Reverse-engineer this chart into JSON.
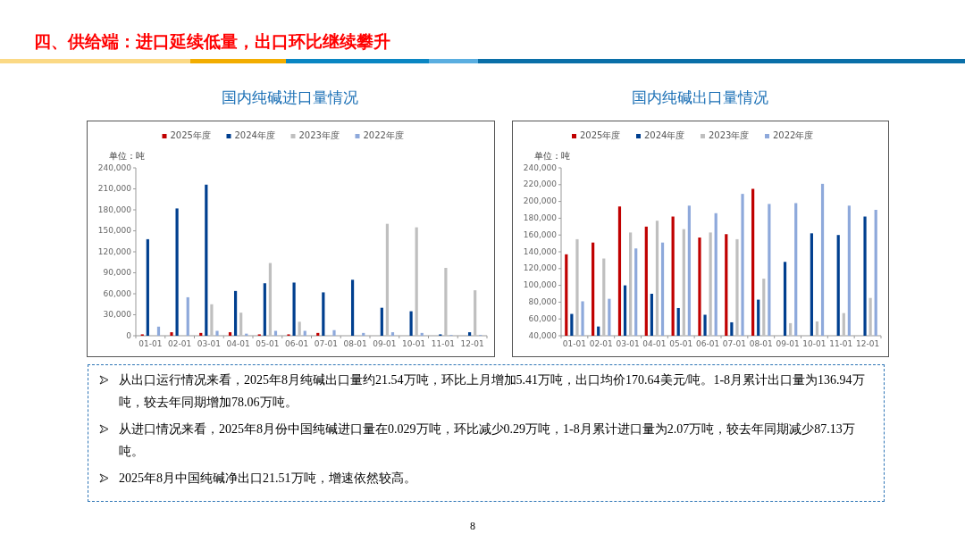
{
  "chart_data": [
    {
      "type": "bar",
      "title": "国内纯碱进口量情况",
      "ylabel": "单位：吨",
      "legend": "top",
      "grid": false,
      "annotations": [
        "四、供给端：进口延续低量，出口环比继续攀升",
        "8"
      ],
      "categories": [
        "01-01",
        "02-01",
        "03-01",
        "04-01",
        "05-01",
        "06-01",
        "07-01",
        "08-01",
        "09-01",
        "10-01",
        "11-01",
        "12-01"
      ],
      "ylim": [
        0,
        240000
      ],
      "yticks": [
        {
          "value": 0,
          "label": "0"
        },
        {
          "value": 30000,
          "label": "30,000"
        },
        {
          "value": 60000,
          "label": "60,000"
        },
        {
          "value": 90000,
          "label": "90,000"
        },
        {
          "value": 120000,
          "label": "120,000"
        },
        {
          "value": 150000,
          "label": "150,000"
        },
        {
          "value": 180000,
          "label": "180,000"
        },
        {
          "value": 210000,
          "label": "210,000"
        },
        {
          "value": 240000,
          "label": "240,000"
        }
      ],
      "series": [
        {
          "name": "2025年度",
          "color": "#c00000",
          "values": [
            2000,
            5000,
            4000,
            5000,
            2000,
            2000,
            4000,
            0,
            null,
            null,
            null,
            null
          ]
        },
        {
          "name": "2024年度",
          "color": "#003f8f",
          "values": [
            138000,
            182000,
            216000,
            64000,
            75000,
            76000,
            62000,
            80000,
            40000,
            35000,
            2000,
            5000
          ]
        },
        {
          "name": "2023年度",
          "color": "#bfbfbf",
          "values": [
            null,
            0,
            45000,
            33000,
            104000,
            20000,
            null,
            0,
            160000,
            155000,
            97000,
            65000
          ]
        },
        {
          "name": "2022年度",
          "color": "#8ea9db",
          "values": [
            13000,
            55000,
            7000,
            3000,
            7000,
            7000,
            8000,
            4000,
            5000,
            4000,
            1000,
            1000
          ]
        }
      ]
    },
    {
      "type": "bar",
      "title": "国内纯碱出口量情况",
      "ylabel": "单位：吨",
      "legend": "top",
      "grid": false,
      "annotations": [
        "从出口运行情况来看，2025年8月纯碱出口量约21.54万吨，环比上月增加5.41万吨，出口均价170.64美元/吨。1-8月累计出口量为136.94万吨，较去年同期增加78.06万吨。",
        "从进口情况来看，2025年8月份中国纯碱进口量在0.029万吨，环比减少0.29万吨，1-8月累计进口量为2.07万吨，较去年同期减少87.13万吨。",
        "2025年8月中国纯碱净出口21.51万吨，增速依然较高。"
      ],
      "categories": [
        "01-01",
        "02-01",
        "03-01",
        "04-01",
        "05-01",
        "06-01",
        "07-01",
        "08-01",
        "09-01",
        "10-01",
        "11-01",
        "12-01"
      ],
      "ylim": [
        40000,
        240000
      ],
      "yticks": [
        {
          "value": 40000,
          "label": "40,000"
        },
        {
          "value": 60000,
          "label": "60,000"
        },
        {
          "value": 80000,
          "label": "80,000"
        },
        {
          "value": 100000,
          "label": "100,000"
        },
        {
          "value": 120000,
          "label": "120,000"
        },
        {
          "value": 140000,
          "label": "140,000"
        },
        {
          "value": 160000,
          "label": "160,000"
        },
        {
          "value": 180000,
          "label": "180,000"
        },
        {
          "value": 200000,
          "label": "200,000"
        },
        {
          "value": 220000,
          "label": "220,000"
        },
        {
          "value": 240000,
          "label": "240,000"
        }
      ],
      "series": [
        {
          "name": "2025年度",
          "color": "#c00000",
          "values": [
            137000,
            151000,
            194000,
            170000,
            182000,
            157000,
            161000,
            215000,
            null,
            null,
            null,
            null
          ]
        },
        {
          "name": "2024年度",
          "color": "#003f8f",
          "values": [
            66000,
            51000,
            100000,
            90000,
            73000,
            65000,
            56000,
            83000,
            128000,
            162000,
            160000,
            182000
          ]
        },
        {
          "name": "2023年度",
          "color": "#bfbfbf",
          "values": [
            155000,
            132000,
            163000,
            177000,
            167000,
            163000,
            155000,
            108000,
            55000,
            57000,
            67000,
            85000
          ]
        },
        {
          "name": "2022年度",
          "color": "#8ea9db",
          "values": [
            81000,
            84000,
            144000,
            151000,
            195000,
            186000,
            209000,
            197000,
            198000,
            221000,
            195000,
            190000
          ]
        }
      ]
    }
  ]
}
